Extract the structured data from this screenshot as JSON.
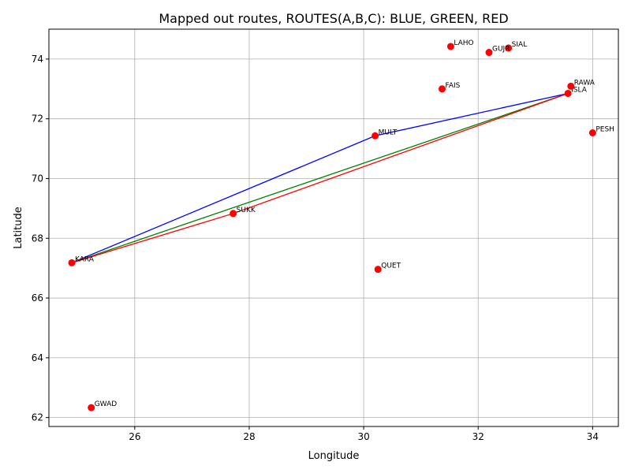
{
  "chart_data": {
    "type": "scatter",
    "title": "Mapped out routes, ROUTES(A,B,C): BLUE, GREEN, RED",
    "xlabel": "Longitude",
    "ylabel": "Latitude",
    "xlim": [
      24.5,
      34.45
    ],
    "ylim": [
      61.7,
      75.0
    ],
    "xticks": [
      26,
      28,
      30,
      32,
      34
    ],
    "yticks": [
      62,
      64,
      66,
      68,
      70,
      72,
      74
    ],
    "grid": true,
    "point_color": "#ff0000",
    "points": [
      {
        "label": "LAHO",
        "x": 31.52,
        "y": 74.42
      },
      {
        "label": "SIAL",
        "x": 32.53,
        "y": 74.37
      },
      {
        "label": "GUJR",
        "x": 32.19,
        "y": 74.22
      },
      {
        "label": "RAWA",
        "x": 33.62,
        "y": 73.09
      },
      {
        "label": "FAIS",
        "x": 31.37,
        "y": 73.0
      },
      {
        "label": "ISLA",
        "x": 33.57,
        "y": 72.85
      },
      {
        "label": "PESH",
        "x": 34.0,
        "y": 71.53
      },
      {
        "label": "MULT",
        "x": 30.2,
        "y": 71.43
      },
      {
        "label": "SUKK",
        "x": 27.72,
        "y": 68.83
      },
      {
        "label": "KARA",
        "x": 24.9,
        "y": 67.18
      },
      {
        "label": "QUET",
        "x": 30.25,
        "y": 66.96
      },
      {
        "label": "GWAD",
        "x": 25.24,
        "y": 62.33
      }
    ],
    "routes": [
      {
        "color": "#0000ff",
        "path": [
          "KARA",
          "MULT",
          "ISLA",
          "MULT",
          "KARA"
        ]
      },
      {
        "color": "#008000",
        "path": [
          "KARA",
          "ISLA"
        ]
      },
      {
        "color": "#ff0000",
        "path": [
          "KARA",
          "SUKK",
          "ISLA"
        ]
      }
    ]
  }
}
